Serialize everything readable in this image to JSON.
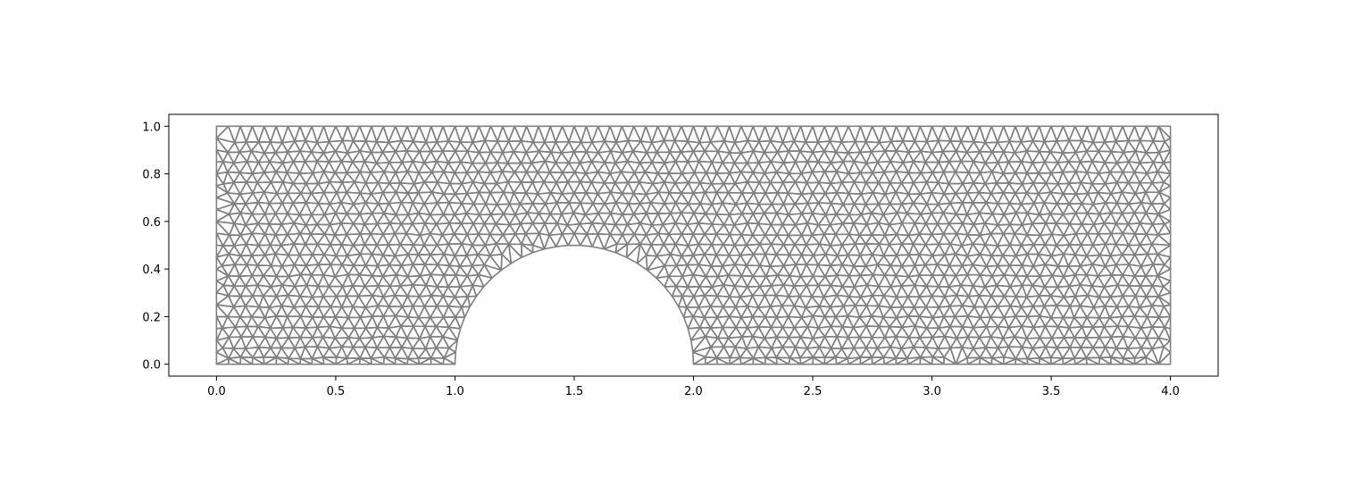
{
  "chart_data": {
    "type": "mesh",
    "title": "",
    "xlabel": "",
    "ylabel": "",
    "xlim": [
      -0.2,
      4.2
    ],
    "ylim": [
      -0.05,
      1.05
    ],
    "xticks": [
      "0.0",
      "0.5",
      "1.0",
      "1.5",
      "2.0",
      "2.5",
      "3.0",
      "3.5",
      "4.0"
    ],
    "yticks": [
      "0.0",
      "0.2",
      "0.4",
      "0.6",
      "0.8",
      "1.0"
    ],
    "domain": {
      "rectangle": {
        "x": [
          0.0,
          4.0
        ],
        "y": [
          0.0,
          1.0
        ]
      },
      "semicircle_hole": {
        "center": [
          1.5,
          0.0
        ],
        "radius": 0.5
      }
    },
    "element_size": 0.05,
    "element_type": "triangle",
    "grid": false,
    "legend": "none"
  },
  "colors": {
    "mesh_edge": "#808080",
    "axes": "#000000",
    "background": "#ffffff"
  }
}
